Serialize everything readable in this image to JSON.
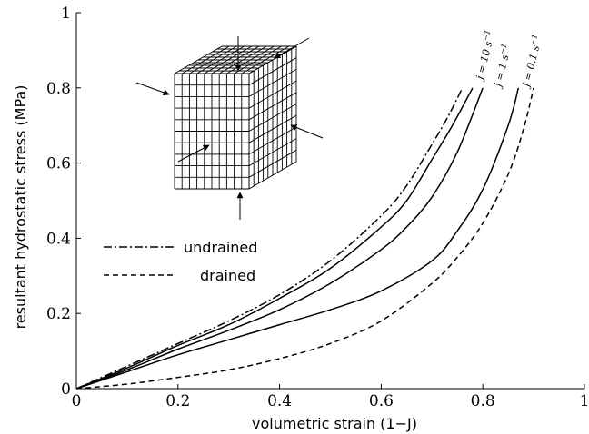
{
  "chart_data": {
    "type": "line",
    "xlabel": "volumetric strain (1−J)",
    "ylabel": "resultant hydrostatic stress (MPa)",
    "xlim": [
      0,
      1
    ],
    "ylim": [
      0,
      1
    ],
    "x_ticks": [
      "0",
      "0.2",
      "0.4",
      "0.6",
      "0.8",
      "1"
    ],
    "y_ticks": [
      "0",
      "0.2",
      "0.4",
      "0.6",
      "0.8",
      "1"
    ],
    "grid": false,
    "legend_position": "middle-left",
    "series": [
      {
        "name": "undrained",
        "style": "dashdot",
        "color": "#000000",
        "x": [
          0,
          0.1,
          0.2,
          0.3,
          0.4,
          0.5,
          0.6,
          0.65,
          0.7,
          0.73,
          0.76
        ],
        "y": [
          0,
          0.06,
          0.12,
          0.18,
          0.25,
          0.34,
          0.46,
          0.54,
          0.65,
          0.72,
          0.8
        ]
      },
      {
        "name": "j = 10 s⁻¹",
        "style": "solid",
        "color": "#000000",
        "x": [
          0,
          0.1,
          0.2,
          0.3,
          0.4,
          0.5,
          0.6,
          0.65,
          0.7,
          0.74,
          0.78
        ],
        "y": [
          0,
          0.055,
          0.115,
          0.17,
          0.24,
          0.32,
          0.43,
          0.5,
          0.61,
          0.7,
          0.8
        ]
      },
      {
        "name": "j = 1 s⁻¹",
        "style": "solid",
        "color": "#000000",
        "x": [
          0,
          0.1,
          0.2,
          0.3,
          0.4,
          0.5,
          0.6,
          0.65,
          0.7,
          0.75,
          0.8
        ],
        "y": [
          0,
          0.05,
          0.105,
          0.155,
          0.21,
          0.28,
          0.37,
          0.43,
          0.51,
          0.63,
          0.8
        ]
      },
      {
        "name": "j = 0.1 s⁻¹",
        "style": "solid",
        "color": "#000000",
        "x": [
          0,
          0.1,
          0.2,
          0.3,
          0.4,
          0.5,
          0.6,
          0.7,
          0.75,
          0.8,
          0.85,
          0.87
        ],
        "y": [
          0,
          0.045,
          0.09,
          0.13,
          0.17,
          0.21,
          0.26,
          0.34,
          0.42,
          0.53,
          0.7,
          0.8
        ]
      },
      {
        "name": "drained",
        "style": "dashed",
        "color": "#000000",
        "x": [
          0,
          0.1,
          0.2,
          0.3,
          0.4,
          0.5,
          0.6,
          0.7,
          0.75,
          0.8,
          0.85,
          0.88,
          0.9
        ],
        "y": [
          0,
          0.012,
          0.03,
          0.05,
          0.08,
          0.12,
          0.18,
          0.28,
          0.35,
          0.44,
          0.57,
          0.69,
          0.8
        ]
      }
    ],
    "legend": [
      {
        "label": "undrained",
        "style": "dashdot"
      },
      {
        "label": "drained",
        "style": "dashed"
      }
    ],
    "rate_labels": [
      {
        "series": "j = 10 s⁻¹",
        "base": "j = 10 s",
        "sup": "−1"
      },
      {
        "series": "j = 1 s⁻¹",
        "base": "j = 1 s",
        "sup": "−1"
      },
      {
        "series": "j = 0.1 s⁻¹",
        "base": "j = 0.1 s",
        "sup": "−1"
      }
    ],
    "inset": "cube-mesh-with-compression-arrows"
  }
}
